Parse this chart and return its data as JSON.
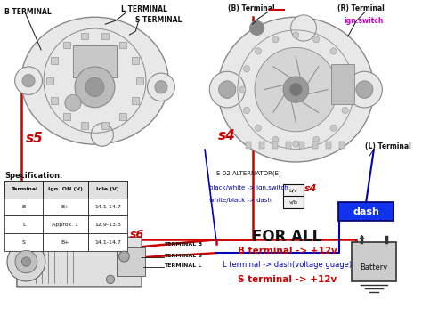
{
  "labels": {
    "b_terminal_top_left": "B TERMINAL",
    "l_terminal_top_left": "L TERMINAL",
    "s_terminal_top_left": "S TERMINAL",
    "s5": "s5",
    "b_terminal_top_right": "(B) Terminal",
    "r_terminal_top_right": "(R) Terminal",
    "ign_switch": "ign.switch",
    "l_terminal_right": "(L) Terminal",
    "s4_center": "s4",
    "s4_label2": "s4",
    "e02_label": "E-02 ALTERNATOR(E)",
    "bw_ign": "black/white -> ign.switch",
    "wb_dash": "white/black -> dash",
    "bv_box": "b/v",
    "vb_box": "v/b",
    "spec_title": "Specification:",
    "col1": "Terminal",
    "col2": "Ign. ON (V)",
    "col3": "Idle (V)",
    "row1_c1": "B",
    "row1_c2": "B+",
    "row1_c3": "14.1-14.7",
    "row2_c1": "L",
    "row2_c2": "Approx. 1",
    "row2_c3": "12.9-13.5",
    "row3_c1": "S",
    "row3_c2": "B+",
    "row3_c3": "14.1-14.7",
    "s6": "s6",
    "terminal_b": "TERMINAL B",
    "terminal_s": "TERMINAL S",
    "terminal_l": "TERMINAL L",
    "for_all": "FOR ALL",
    "b_12v": "B terminal -> +12v",
    "l_dash": "L terminal -> dash(voltage guage)",
    "s_12v": "S terminal -> +12v",
    "dash_box": "dash",
    "battery_label": "Battery"
  },
  "colors": {
    "red": "#cc0000",
    "blue": "#0000bb",
    "dark_blue": "#0000aa",
    "magenta": "#cc00cc",
    "black": "#111111",
    "white": "#ffffff",
    "dash_blue": "#1133ee",
    "for_all_red": "#cc0000",
    "for_all_blue": "#0000bb",
    "alt_gray": "#888888",
    "alt_fill": "#dddddd",
    "alt_dark": "#555555"
  }
}
